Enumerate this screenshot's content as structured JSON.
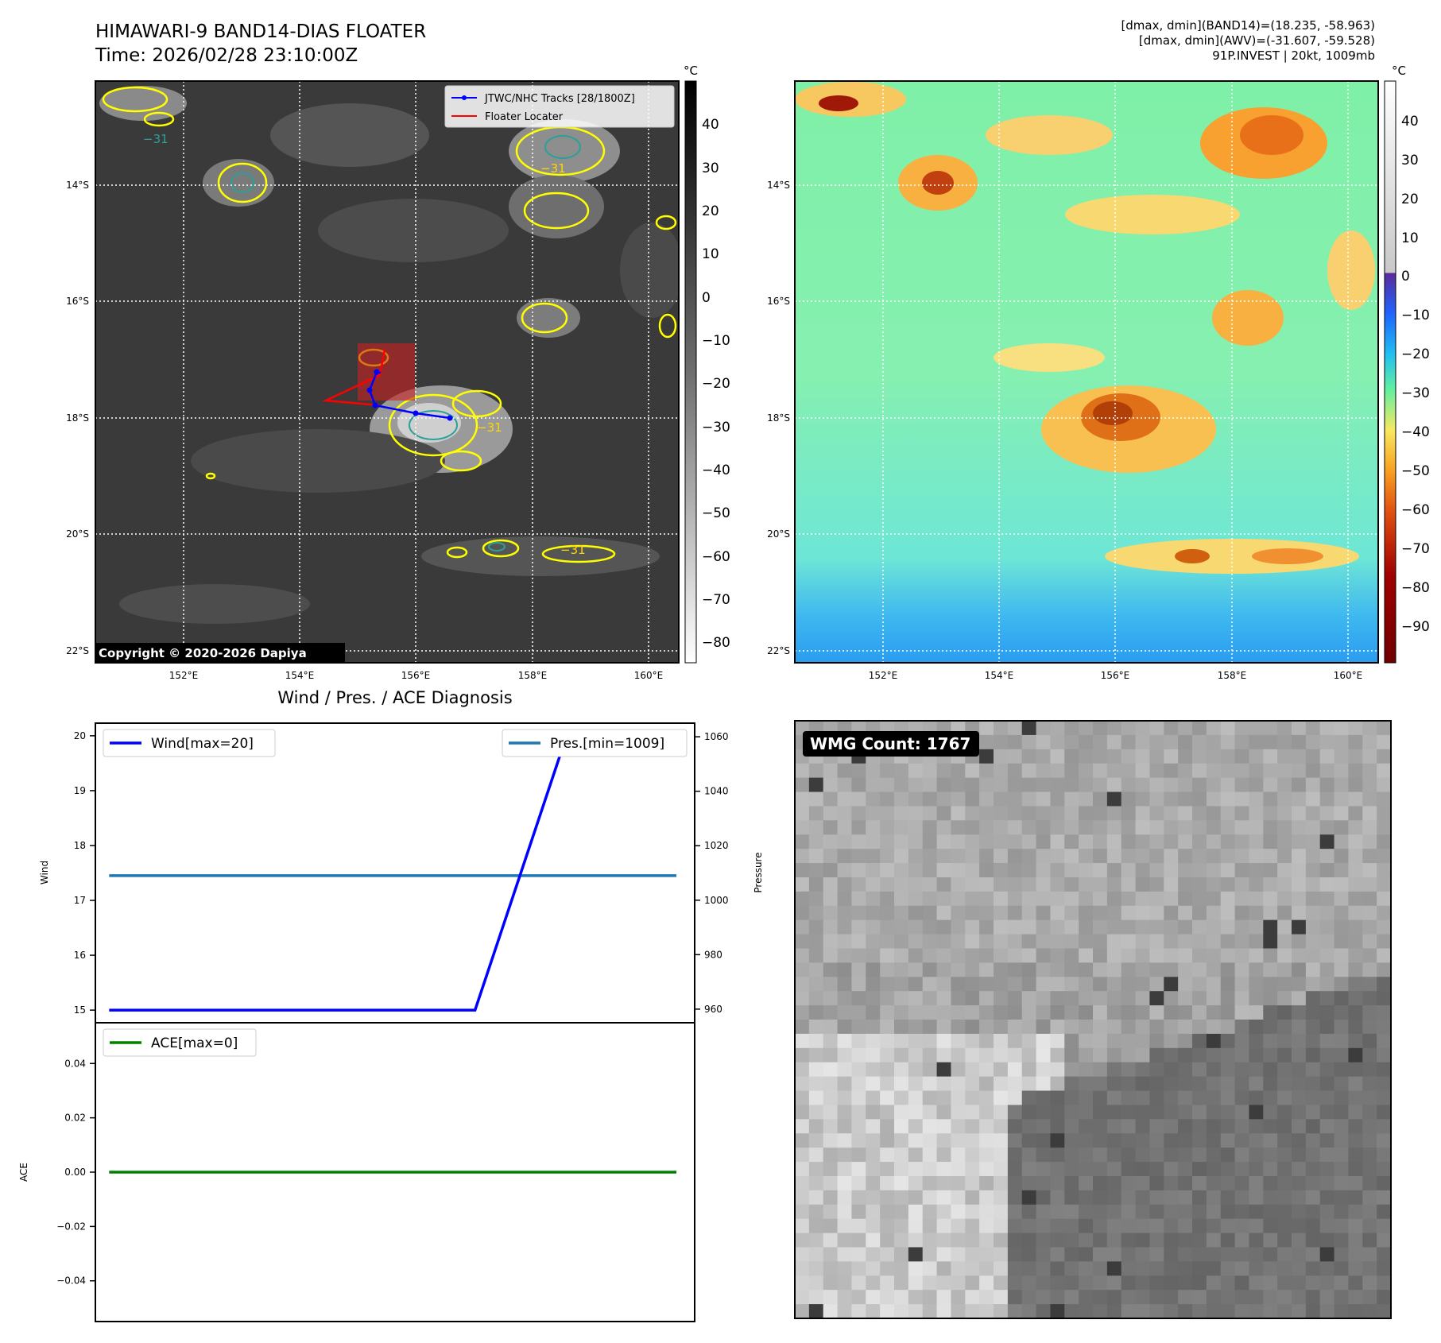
{
  "header": {
    "title_line1": "HIMAWARI-9 BAND14-DIAS FLOATER",
    "title_line2": "Time: 2026/02/28 23:10:00Z",
    "stats_line1": "[dmax, dmin](BAND14)=(18.235, -58.963)",
    "stats_line2": "[dmax, dmin](AWV)=(-31.607, -59.528)",
    "stats_line3": "91P.INVEST | 20kt, 1009mb"
  },
  "map_left": {
    "lat_labels": [
      "14°S",
      "16°S",
      "18°S",
      "20°S",
      "22°S"
    ],
    "lon_labels": [
      "152°E",
      "154°E",
      "156°E",
      "158°E",
      "160°E"
    ],
    "legend": [
      {
        "label": "JTWC/NHC Tracks [28/1800Z]",
        "color": "#0000ff"
      },
      {
        "label": "Floater Locater",
        "color": "#ff0000"
      }
    ],
    "contour_label": "−31",
    "copyright": "Copyright © 2020-2026 Dapiya",
    "colorbar": {
      "unit": "°C",
      "ticks": [
        "40",
        "30",
        "20",
        "10",
        "0",
        "−10",
        "−20",
        "−30",
        "−40",
        "−50",
        "−60",
        "−70",
        "−80"
      ]
    }
  },
  "map_right": {
    "lat_labels": [
      "14°S",
      "16°S",
      "18°S",
      "20°S",
      "22°S"
    ],
    "lon_labels": [
      "152°E",
      "154°E",
      "156°E",
      "158°E",
      "160°E"
    ],
    "colorbar": {
      "unit": "°C",
      "ticks": [
        "40",
        "30",
        "20",
        "10",
        "0",
        "−10",
        "−20",
        "−30",
        "−40",
        "−50",
        "−60",
        "−70",
        "−80",
        "−90"
      ]
    }
  },
  "wmg": {
    "label": "WMG Count: 1767"
  },
  "chart_data": [
    {
      "type": "line",
      "title": "Wind / Pres. / ACE Diagnosis",
      "ylabel": "Wind",
      "y2label": "Pressure",
      "ylim": [
        15,
        20
      ],
      "y2lim": [
        955,
        1065
      ],
      "yticks": [
        "15",
        "16",
        "17",
        "18",
        "19",
        "20"
      ],
      "y2ticks": [
        "960",
        "980",
        "1000",
        "1020",
        "1040",
        "1060"
      ],
      "x": [
        0,
        1,
        2,
        3,
        4,
        5,
        6
      ],
      "xlim": [
        -0.15,
        6.4
      ],
      "series": [
        {
          "name": "Wind[max=20]",
          "axis": "left",
          "color": "#0000ff",
          "x": [
            0,
            4,
            5,
            6.2
          ],
          "values": [
            15,
            15,
            20,
            20
          ]
        },
        {
          "name": "Pres.[min=1009]",
          "axis": "right",
          "color": "#1f77b4",
          "x": [
            0,
            6.2
          ],
          "values": [
            1009,
            1009
          ]
        }
      ]
    },
    {
      "type": "line",
      "ylabel": "ACE",
      "ylim": [
        -0.055,
        0.055
      ],
      "yticks": [
        "−0.04",
        "−0.02",
        "0.00",
        "0.02",
        "0.04"
      ],
      "xlim": [
        -0.15,
        6.4
      ],
      "series": [
        {
          "name": "ACE[max=0]",
          "color": "#008000",
          "x": [
            0,
            6.2
          ],
          "values": [
            0,
            0
          ]
        }
      ]
    }
  ]
}
